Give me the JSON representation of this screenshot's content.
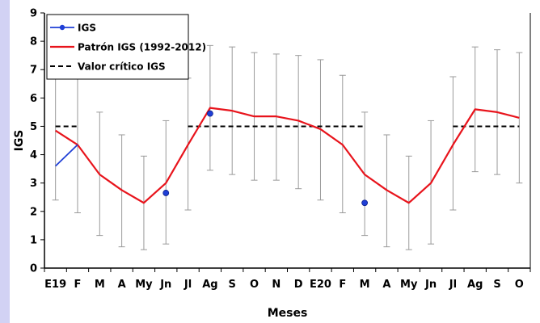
{
  "chart_data": {
    "type": "line",
    "title": "",
    "xlabel": "Meses",
    "ylabel": "IGS",
    "ylim": [
      0,
      9
    ],
    "yticks": [
      0,
      1,
      2,
      3,
      4,
      5,
      6,
      7,
      8,
      9
    ],
    "categories": [
      "E19",
      "F",
      "M",
      "A",
      "My",
      "Jn",
      "Jl",
      "Ag",
      "S",
      "O",
      "N",
      "D",
      "E20",
      "F",
      "M",
      "A",
      "My",
      "Jn",
      "Jl",
      "Ag",
      "S",
      "O"
    ],
    "legend": {
      "position": "top-left",
      "entries": [
        "IGS",
        "Patrón IGS (1992-2012)",
        "Valor crítico IGS"
      ]
    },
    "series": [
      {
        "name": "IGS",
        "style": "line-markers",
        "color": "#1f3fd6",
        "values": [
          3.6,
          4.35,
          null,
          null,
          null,
          2.65,
          null,
          5.45,
          null,
          null,
          null,
          null,
          null,
          null,
          2.3,
          null,
          null,
          null,
          null,
          null,
          null,
          null
        ]
      },
      {
        "name": "Patrón IGS (1992-2012)",
        "style": "line",
        "color": "#e8141c",
        "values": [
          4.85,
          4.35,
          3.3,
          2.75,
          2.3,
          3.0,
          4.35,
          5.65,
          5.55,
          5.35,
          5.35,
          5.2,
          4.9,
          4.35,
          3.3,
          2.75,
          2.3,
          3.0,
          4.35,
          5.6,
          5.5,
          5.3
        ],
        "error_low": [
          2.4,
          1.95,
          1.15,
          0.75,
          0.65,
          0.85,
          2.05,
          3.45,
          3.3,
          3.1,
          3.1,
          2.8,
          2.4,
          1.95,
          1.15,
          0.75,
          0.65,
          0.85,
          2.05,
          3.4,
          3.3,
          3.0
        ],
        "error_high": [
          7.3,
          6.75,
          5.5,
          4.7,
          3.95,
          5.2,
          6.7,
          7.85,
          7.8,
          7.6,
          7.55,
          7.5,
          7.35,
          6.8,
          5.5,
          4.7,
          3.95,
          5.2,
          6.75,
          7.8,
          7.7,
          7.6
        ]
      },
      {
        "name": "Valor crítico IGS",
        "style": "dashed",
        "color": "#000000",
        "segments": [
          {
            "from": "E19",
            "to": "F",
            "value": 5
          },
          {
            "from": "Jl",
            "to": "M",
            "value": 5
          },
          {
            "from": "Jl",
            "to": "O",
            "value": 5
          }
        ]
      }
    ]
  }
}
